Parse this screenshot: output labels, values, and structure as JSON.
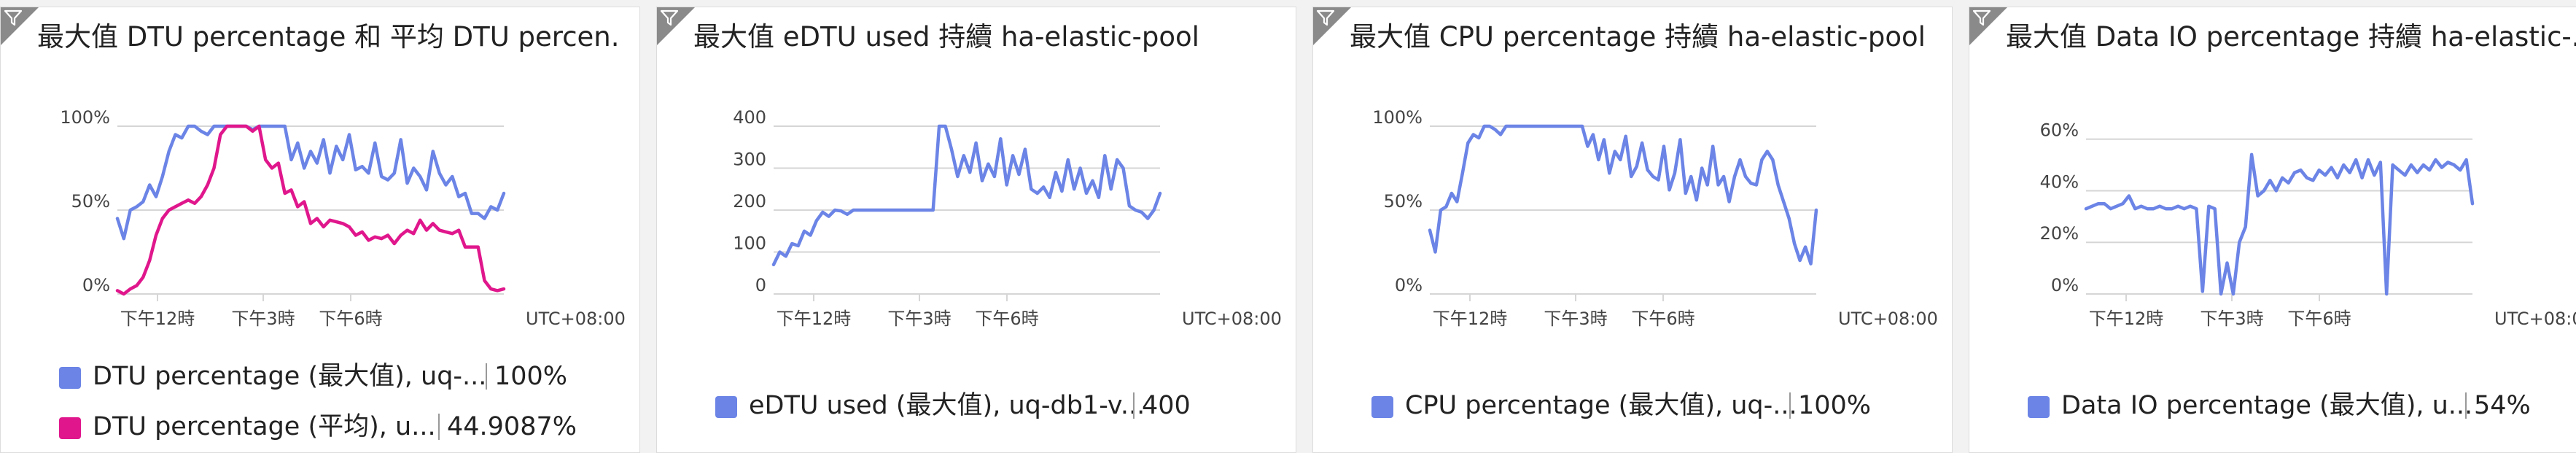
{
  "tiles": [
    {
      "title": "最大值 DTU percentage 和 平均 DTU percen...",
      "legend": [
        {
          "label": "DTU percentage (最大值), uq-...",
          "value": "100%",
          "color": "#6b84e6"
        },
        {
          "label": "DTU percentage (平均), u...",
          "value": "44.9087%",
          "color": "#e0178c"
        }
      ]
    },
    {
      "title": "最大值 eDTU used 持續 ha-elastic-pool",
      "legend": [
        {
          "label": "eDTU used (最大值), uq-db1-v...",
          "value": "400",
          "color": "#6b84e6"
        }
      ]
    },
    {
      "title": "最大值 CPU percentage 持續 ha-elastic-pool",
      "legend": [
        {
          "label": "CPU percentage (最大值), uq-...",
          "value": "100%",
          "color": "#6b84e6"
        }
      ]
    },
    {
      "title": "最大值 Data IO percentage 持續 ha-elastic-...",
      "legend": [
        {
          "label": "Data IO percentage (最大值), u...",
          "value": "54%",
          "color": "#6b84e6"
        }
      ]
    }
  ],
  "chart_data": [
    {
      "type": "line",
      "x_ticks": [
        "下午12時",
        "下午3時",
        "下午6時"
      ],
      "timezone": "UTC+08:00",
      "y_ticks": [
        "100%",
        "50%",
        "0%"
      ],
      "ylim": [
        0,
        100
      ],
      "series": [
        {
          "name": "DTU percentage (最大值), uq-...",
          "color": "#6b84e6",
          "values": [
            45,
            33,
            50,
            52,
            55,
            65,
            58,
            70,
            85,
            95,
            93,
            100,
            100,
            97,
            95,
            100,
            100,
            100,
            100,
            100,
            100,
            98,
            100,
            100,
            100,
            100,
            100,
            80,
            90,
            75,
            85,
            78,
            92,
            72,
            88,
            80,
            95,
            74,
            76,
            72,
            90,
            70,
            68,
            72,
            92,
            66,
            75,
            70,
            62,
            85,
            72,
            65,
            70,
            58,
            60,
            48,
            48,
            45,
            52,
            50,
            60
          ]
        },
        {
          "name": "DTU percentage (平均), u...",
          "color": "#e0178c",
          "values": [
            2,
            0,
            3,
            5,
            10,
            20,
            35,
            45,
            50,
            52,
            54,
            56,
            54,
            58,
            65,
            75,
            95,
            100,
            100,
            100,
            100,
            97,
            100,
            80,
            75,
            78,
            60,
            62,
            52,
            55,
            42,
            45,
            40,
            44,
            43,
            42,
            40,
            35,
            37,
            32,
            34,
            33,
            35,
            30,
            35,
            38,
            36,
            44,
            38,
            42,
            38,
            37,
            36,
            38,
            28,
            28,
            28,
            8,
            3,
            2,
            3
          ]
        }
      ]
    },
    {
      "type": "line",
      "x_ticks": [
        "下午12時",
        "下午3時",
        "下午6時"
      ],
      "timezone": "UTC+08:00",
      "y_ticks": [
        "400",
        "300",
        "200",
        "100",
        "0"
      ],
      "ylim": [
        0,
        400
      ],
      "series": [
        {
          "name": "eDTU used (最大值), uq-db1-v...",
          "color": "#6b84e6",
          "values": [
            70,
            100,
            90,
            120,
            115,
            150,
            140,
            175,
            195,
            185,
            200,
            198,
            190,
            200,
            200,
            200,
            200,
            200,
            200,
            200,
            200,
            200,
            200,
            200,
            200,
            200,
            200,
            400,
            400,
            345,
            280,
            330,
            290,
            360,
            270,
            310,
            280,
            370,
            260,
            330,
            285,
            345,
            250,
            240,
            255,
            230,
            290,
            245,
            320,
            250,
            300,
            240,
            270,
            230,
            330,
            250,
            320,
            300,
            210,
            200,
            195,
            180,
            200,
            240
          ]
        }
      ]
    },
    {
      "type": "line",
      "x_ticks": [
        "下午12時",
        "下午3時",
        "下午6時"
      ],
      "timezone": "UTC+08:00",
      "y_ticks": [
        "100%",
        "50%",
        "0%"
      ],
      "ylim": [
        0,
        100
      ],
      "series": [
        {
          "name": "CPU percentage (最大值), uq-...",
          "color": "#6b84e6",
          "values": [
            38,
            25,
            50,
            52,
            60,
            55,
            72,
            90,
            95,
            93,
            100,
            100,
            98,
            95,
            100,
            100,
            100,
            100,
            100,
            100,
            100,
            100,
            100,
            100,
            100,
            100,
            100,
            100,
            100,
            88,
            95,
            80,
            92,
            72,
            85,
            80,
            94,
            70,
            76,
            90,
            74,
            70,
            68,
            88,
            62,
            72,
            92,
            60,
            70,
            56,
            75,
            65,
            88,
            65,
            70,
            55,
            70,
            80,
            70,
            66,
            65,
            80,
            85,
            80,
            65,
            55,
            45,
            30,
            20,
            28,
            18,
            50
          ]
        }
      ]
    },
    {
      "type": "line",
      "x_ticks": [
        "下午12時",
        "下午3時",
        "下午6時"
      ],
      "timezone": "UTC+08:00",
      "y_ticks": [
        "60%",
        "40%",
        "20%",
        "0%"
      ],
      "ylim": [
        0,
        65
      ],
      "series": [
        {
          "name": "Data IO percentage (最大值), u...",
          "color": "#6b84e6",
          "values": [
            33,
            34,
            35,
            35,
            33,
            34,
            35,
            38,
            33,
            34,
            33,
            33,
            34,
            33,
            33,
            34,
            33,
            34,
            33,
            1,
            34,
            33,
            0,
            12,
            0,
            20,
            26,
            54,
            38,
            40,
            44,
            40,
            45,
            43,
            47,
            48,
            45,
            44,
            48,
            46,
            49,
            45,
            50,
            47,
            52,
            45,
            52,
            46,
            51,
            0,
            50,
            48,
            46,
            50,
            47,
            50,
            48,
            52,
            49,
            51,
            50,
            48,
            52,
            35
          ]
        }
      ]
    }
  ]
}
